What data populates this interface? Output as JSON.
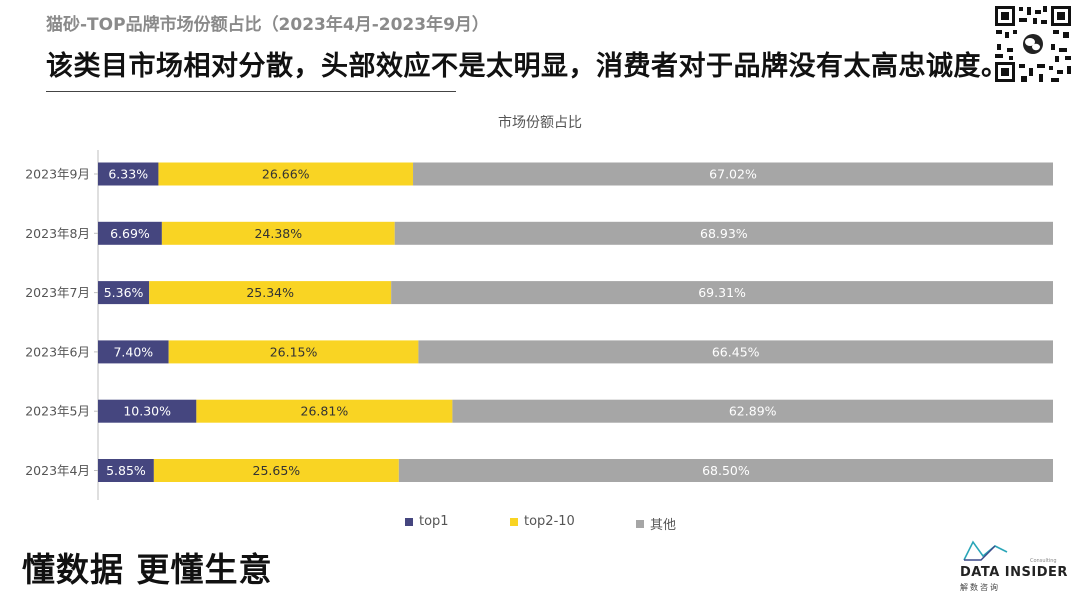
{
  "header": {
    "subtitle": "猫砂-TOP品牌市场份额占比（2023年4月-2023年9月）",
    "title": "该类目市场相对分散，头部效应不是太明显，消费者对于品牌没有太高忠诚度。"
  },
  "chart_title": "市场份额占比",
  "chart_data": {
    "type": "bar",
    "orientation": "horizontal",
    "stacked": true,
    "percent_stacked": true,
    "title": "市场份额占比",
    "categories": [
      "2023年9月",
      "2023年8月",
      "2023年7月",
      "2023年6月",
      "2023年5月",
      "2023年4月"
    ],
    "series": [
      {
        "name": "top1",
        "color": "#45467f",
        "values": [
          6.33,
          6.69,
          5.36,
          7.4,
          10.3,
          5.85
        ],
        "labels": [
          "6.33%",
          "6.69%",
          "5.36%",
          "7.40%",
          "10.30%",
          "5.85%"
        ]
      },
      {
        "name": "top2-10",
        "color": "#f9d423",
        "values": [
          26.66,
          24.38,
          25.34,
          26.15,
          26.81,
          25.65
        ],
        "labels": [
          "26.66%",
          "24.38%",
          "25.34%",
          "26.15%",
          "26.81%",
          "25.65%"
        ]
      },
      {
        "name": "其他",
        "color": "#a6a6a6",
        "values": [
          67.02,
          68.93,
          69.31,
          66.45,
          62.89,
          68.5
        ],
        "labels": [
          "67.02%",
          "68.93%",
          "69.31%",
          "66.45%",
          "62.89%",
          "68.50%"
        ]
      }
    ],
    "legend_position": "bottom",
    "grid": false
  },
  "legend": [
    {
      "label": "top1",
      "color": "#45467f"
    },
    {
      "label": "top2-10",
      "color": "#f9d423"
    },
    {
      "label": "其他",
      "color": "#a6a6a6"
    }
  ],
  "footer": {
    "slogan": "懂数据 更懂生意",
    "logo_name": "DATA INSIDER",
    "logo_sub": "解数咨询",
    "logo_tag": "Consulting"
  }
}
